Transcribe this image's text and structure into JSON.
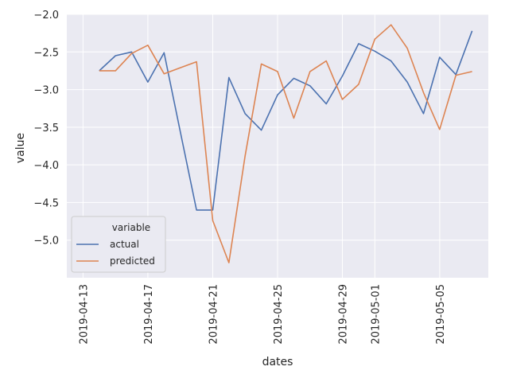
{
  "chart_data": {
    "type": "line",
    "title": "",
    "xlabel": "dates",
    "ylabel": "value",
    "x_ticks": [
      "2019-04-13",
      "2019-04-17",
      "2019-04-21",
      "2019-04-25",
      "2019-04-29",
      "2019-05-01",
      "2019-05-05"
    ],
    "y_ticks": [
      "−2.0",
      "−2.5",
      "−3.0",
      "−3.5",
      "−4.0",
      "−4.5",
      "−5.0"
    ],
    "y_tick_values": [
      -2.0,
      -2.5,
      -3.0,
      -3.5,
      -4.0,
      -4.5,
      -5.0
    ],
    "xlim": [
      "2019-04-12",
      "2019-05-08"
    ],
    "ylim": [
      -5.5,
      -2.0
    ],
    "grid": true,
    "legend": {
      "title": "variable",
      "placement": "lower-left"
    },
    "x": [
      "2019-04-14",
      "2019-04-15",
      "2019-04-16",
      "2019-04-17",
      "2019-04-18",
      "2019-04-19",
      "2019-04-20",
      "2019-04-21",
      "2019-04-22",
      "2019-04-23",
      "2019-04-24",
      "2019-04-25",
      "2019-04-26",
      "2019-04-27",
      "2019-04-28",
      "2019-04-29",
      "2019-04-30",
      "2019-05-01",
      "2019-05-02",
      "2019-05-03",
      "2019-05-04",
      "2019-05-05",
      "2019-05-06",
      "2019-05-07"
    ],
    "series": [
      {
        "name": "actual",
        "color": "#4c72b0",
        "values": [
          -2.75,
          -2.55,
          -2.5,
          -2.9,
          -2.51,
          -3.56,
          -4.6,
          -4.6,
          -2.84,
          -3.32,
          -3.54,
          -3.07,
          -2.85,
          -2.95,
          -3.19,
          -2.82,
          -2.39,
          -2.49,
          -2.62,
          -2.9,
          -3.32,
          -2.57,
          -2.8,
          -2.22
        ]
      },
      {
        "name": "predicted",
        "color": "#dd8452",
        "values": [
          -2.75,
          -2.75,
          -2.52,
          -2.41,
          -2.79,
          -2.71,
          -2.63,
          -4.74,
          -5.3,
          -3.88,
          -2.66,
          -2.76,
          -3.38,
          -2.76,
          -2.62,
          -3.13,
          -2.93,
          -2.33,
          -2.14,
          -2.45,
          -3.04,
          -3.53,
          -2.81,
          -2.76
        ]
      }
    ]
  }
}
